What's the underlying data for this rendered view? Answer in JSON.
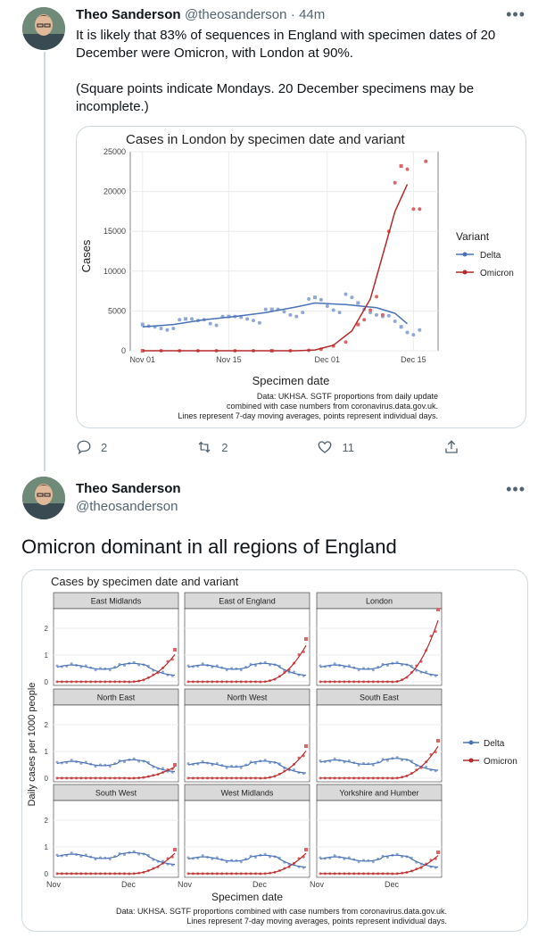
{
  "tweet1": {
    "display_name": "Theo Sanderson",
    "handle": "@theosanderson",
    "time": "· 44m",
    "body_line1": "It is likely that 83% of sequences in England with specimen dates of 20",
    "body_line2": "December were Omicron, with London at 90%.",
    "body_line3": "(Square points indicate Mondays. 20 December specimens may be",
    "body_line4": "incomplete.)",
    "reply_count": "2",
    "retweet_count": "2",
    "like_count": "11"
  },
  "tweet2": {
    "display_name": "Theo Sanderson",
    "handle": "@theosanderson",
    "body": "Omicron dominant in all regions of England"
  },
  "colors": {
    "delta": "#4a72b8",
    "delta_point": "#8fa8d6",
    "omicron": "#b52a2a",
    "omicron_point": "#dc6666"
  },
  "icons": [
    "more-icon",
    "reply-icon",
    "retweet-icon",
    "like-icon",
    "share-icon"
  ],
  "chart_data": [
    {
      "type": "scatter",
      "title": "Cases in London by specimen date and variant",
      "xlabel": "Specimen date",
      "ylabel": "Cases",
      "x_ticks": [
        "Nov 01",
        "Nov 15",
        "Dec 01",
        "Dec 15"
      ],
      "y_ticks": [
        "0",
        "5000",
        "10000",
        "15000",
        "20000",
        "25000"
      ],
      "ylim": [
        0,
        25000
      ],
      "legend_title": "Variant",
      "legend_position": "right",
      "grid": true,
      "caption_line1": "Data: UKHSA. SGTF proportions from daily update",
      "caption_line2": "combined with case numbers from coronavirus.data.gov.uk.",
      "caption_line3": "Lines represent 7-day moving averages, points represent individual days.",
      "series": [
        {
          "name": "Delta",
          "points": [
            [
              0,
              3300
            ],
            [
              1,
              3100
            ],
            [
              2,
              3000
            ],
            [
              3,
              2800
            ],
            [
              4,
              2600
            ],
            [
              5,
              2800
            ],
            [
              6,
              3900
            ],
            [
              7,
              4000
            ],
            [
              8,
              4000
            ],
            [
              9,
              3800
            ],
            [
              10,
              3900
            ],
            [
              11,
              3400
            ],
            [
              12,
              3200
            ],
            [
              13,
              4300
            ],
            [
              14,
              4300
            ],
            [
              15,
              4300
            ],
            [
              16,
              4200
            ],
            [
              17,
              4000
            ],
            [
              18,
              3800
            ],
            [
              19,
              3500
            ],
            [
              20,
              5200
            ],
            [
              21,
              5200
            ],
            [
              22,
              5200
            ],
            [
              23,
              4900
            ],
            [
              24,
              4500
            ],
            [
              25,
              4300
            ],
            [
              26,
              4800
            ],
            [
              27,
              6500
            ],
            [
              28,
              6700
            ],
            [
              29,
              6400
            ],
            [
              30,
              5600
            ],
            [
              31,
              5100
            ],
            [
              32,
              4800
            ],
            [
              33,
              7100
            ],
            [
              34,
              6700
            ],
            [
              35,
              6000
            ],
            [
              36,
              5200
            ],
            [
              37,
              4800
            ],
            [
              38,
              4500
            ],
            [
              39,
              4300
            ],
            [
              40,
              4400
            ],
            [
              41,
              3700
            ],
            [
              42,
              3000
            ],
            [
              43,
              2300
            ],
            [
              44,
              2000
            ],
            [
              45,
              2600
            ]
          ],
          "trend": [
            [
              0,
              3000
            ],
            [
              5,
              3300
            ],
            [
              10,
              3900
            ],
            [
              15,
              4300
            ],
            [
              20,
              4800
            ],
            [
              25,
              5500
            ],
            [
              28,
              6000
            ],
            [
              33,
              5800
            ],
            [
              38,
              5400
            ],
            [
              41,
              4700
            ],
            [
              43,
              3400
            ]
          ]
        },
        {
          "name": "Omicron",
          "points": [
            [
              0,
              0
            ],
            [
              3,
              0
            ],
            [
              6,
              0
            ],
            [
              9,
              0
            ],
            [
              12,
              0
            ],
            [
              15,
              0
            ],
            [
              18,
              0
            ],
            [
              21,
              0
            ],
            [
              24,
              0
            ],
            [
              27,
              50
            ],
            [
              29,
              200
            ],
            [
              31,
              600
            ],
            [
              33,
              1100
            ],
            [
              35,
              3300
            ],
            [
              36,
              3900
            ],
            [
              37,
              5100
            ],
            [
              38,
              6800
            ],
            [
              39,
              4500
            ],
            [
              40,
              15000
            ],
            [
              41,
              21100
            ],
            [
              42,
              23200
            ],
            [
              43,
              22800
            ],
            [
              44,
              17800
            ],
            [
              45,
              17800
            ],
            [
              46,
              23800
            ]
          ],
          "trend": [
            [
              0,
              0
            ],
            [
              25,
              0
            ],
            [
              28,
              100
            ],
            [
              31,
              700
            ],
            [
              34,
              2500
            ],
            [
              37,
              6500
            ],
            [
              39,
              12000
            ],
            [
              41,
              17500
            ],
            [
              43,
              20900
            ]
          ]
        }
      ]
    },
    {
      "type": "scatter",
      "title": "Cases by specimen date and variant",
      "xlabel": "Specimen date",
      "ylabel": "Daily cases per 1000 people",
      "x_ticks": [
        "Nov",
        "Dec"
      ],
      "y_ticks": [
        "0",
        "1",
        "2"
      ],
      "ylim": [
        0,
        2.6
      ],
      "panels": [
        "East Midlands",
        "East of England",
        "London",
        "North East",
        "North West",
        "South East",
        "South West",
        "West Midlands",
        "Yorkshire and Humber"
      ],
      "legend": [
        "Delta",
        "Omicron"
      ],
      "legend_position": "right",
      "caption_line1": "Data: UKHSA. SGTF proportions combined with case numbers from coronavirus.data.gov.uk.",
      "caption_line2": "Lines represent 7-day moving averages, points represent individual days.",
      "omicron_final": [
        1.2,
        1.6,
        2.7,
        0.5,
        1.2,
        1.4,
        0.9,
        0.9,
        0.8
      ],
      "delta_level": [
        0.55,
        0.55,
        0.55,
        0.55,
        0.5,
        0.6,
        0.65,
        0.55,
        0.55
      ]
    }
  ]
}
